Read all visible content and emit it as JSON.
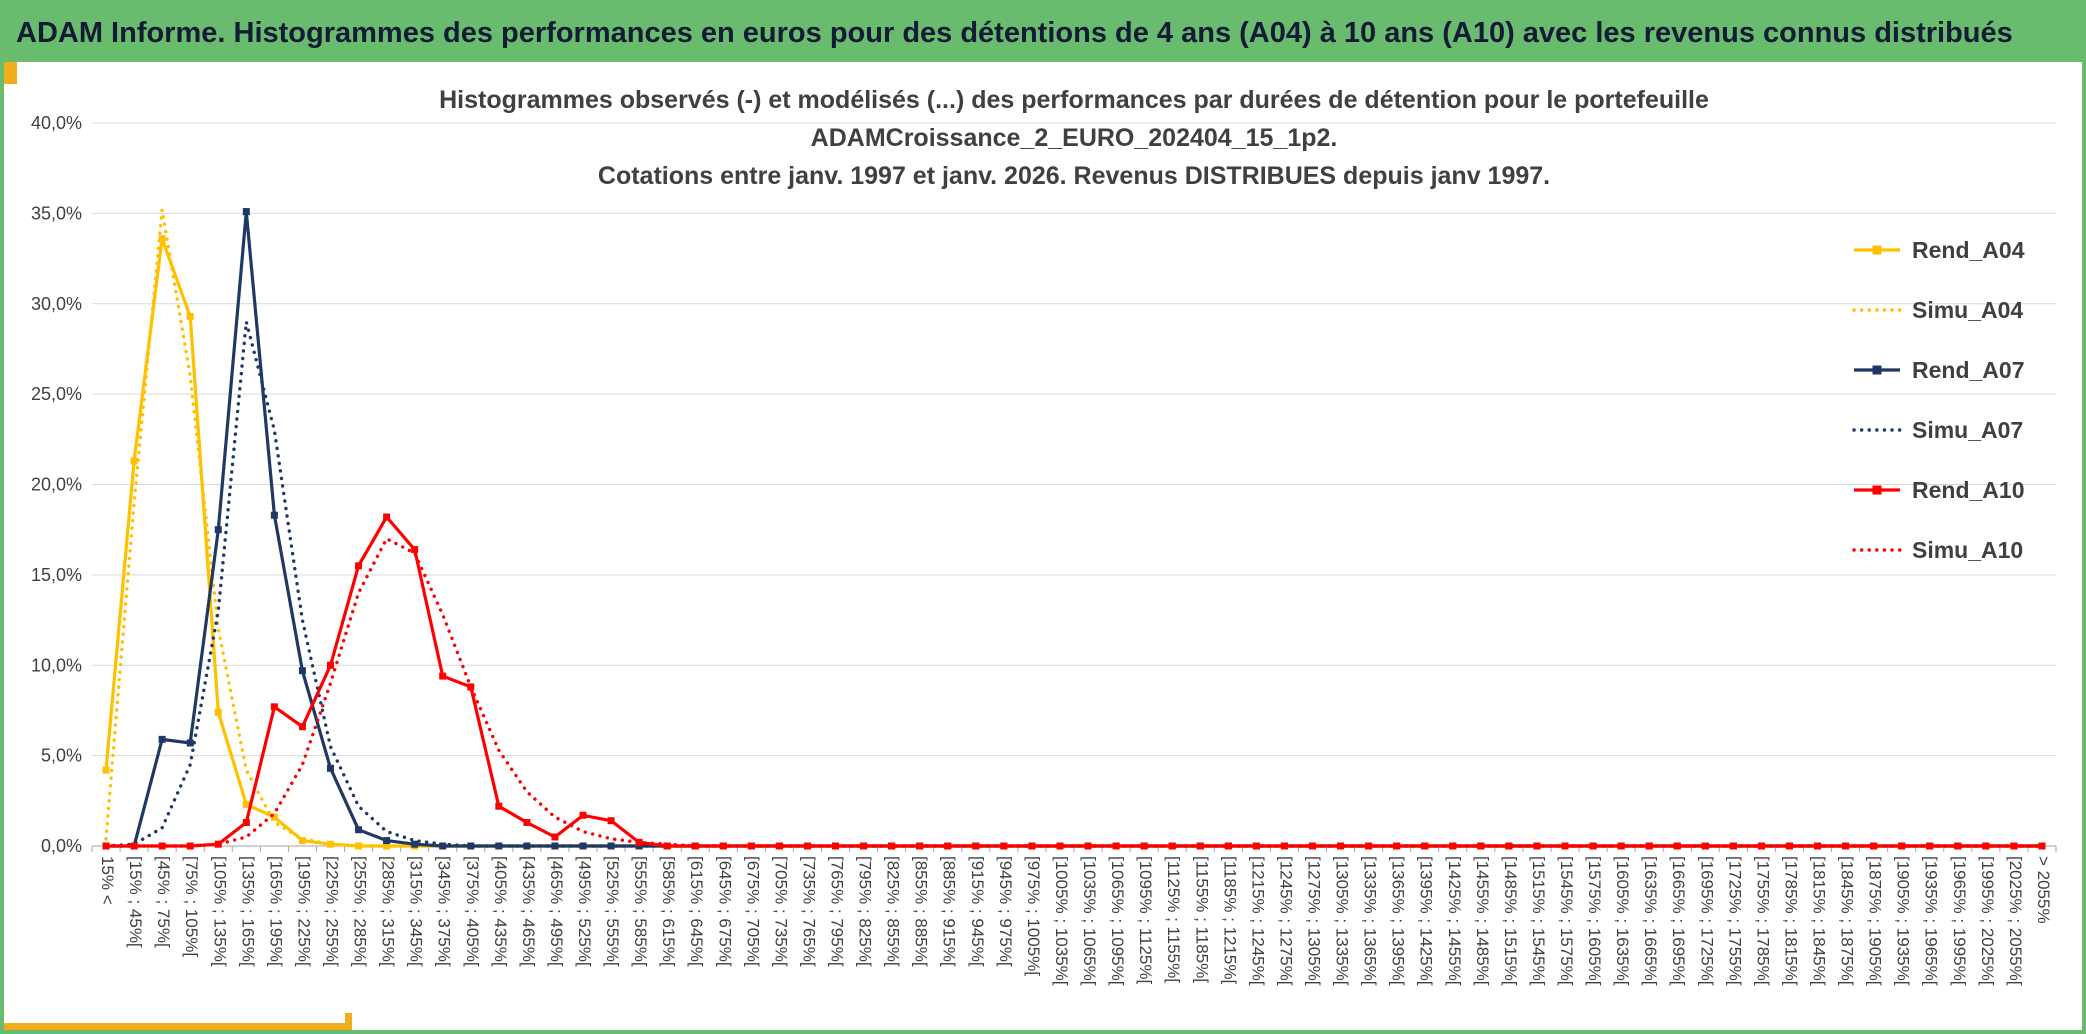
{
  "header": {
    "title": "ADAM Informe. Histogrammes des performances en euros pour des détentions de 4 ans (A04) à 10 ans (A10) avec les revenus connus distribués"
  },
  "colors": {
    "header_green": "#69BC6D",
    "header_text": "#131B36",
    "accent_gold": "#F0AE1F",
    "title_text": "#404040",
    "tick_text": "#404040",
    "grid_line": "#D9D9D9",
    "axis_line": "#A6A6A6",
    "series_gold": "#FFC000",
    "series_navy": "#1F3864",
    "series_red": "#FF0000"
  },
  "chart_data": {
    "type": "line",
    "title_lines": [
      "Histogrammes observés (-) et modélisés (...) des performances par durées de détention pour le portefeuille",
      "ADAMCroissance_2_EURO_202404_15_1p2.",
      "Cotations entre janv. 1997 et janv. 2026. Revenus DISTRIBUES depuis janv 1997."
    ],
    "xlabel": "",
    "ylabel": "",
    "ylim": [
      0,
      40
    ],
    "grid": "horizontal",
    "legend_position": "right-inside",
    "y_ticks": [
      "0,0%",
      "5,0%",
      "10,0%",
      "15,0%",
      "20,0%",
      "25,0%",
      "30,0%",
      "35,0%",
      "40,0%"
    ],
    "categories": [
      "15%  <",
      "[15% ; 45%[",
      "[45% ; 75%[",
      "[75% ; 105%[",
      "[105% ; 135%[",
      "[135% ; 165%[",
      "[165% ; 195%[",
      "[195% ; 225%[",
      "[225% ; 255%[",
      "[255% ; 285%[",
      "[285% ; 315%[",
      "[315% ; 345%[",
      "[345% ; 375%[",
      "[375% ; 405%[",
      "[405% ; 435%[",
      "[435% ; 465%[",
      "[465% ; 495%[",
      "[495% ; 525%[",
      "[525% ; 555%[",
      "[555% ; 585%[",
      "[585% ; 615%[",
      "[615% ; 645%[",
      "[645% ; 675%[",
      "[675% ; 705%[",
      "[705% ; 735%[",
      "[735% ; 765%[",
      "[765% ; 795%[",
      "[795% ; 825%[",
      "[825% ; 855%[",
      "[855% ; 885%[",
      "[885% ; 915%[",
      "[915% ; 945%[",
      "[945% ; 975%[",
      "[975% ; 1005%[",
      "[1005% ; 1035%[",
      "[1035% ; 1065%[",
      "[1065% ; 1095%[",
      "[1095% ; 1125%[",
      "[1125% ; 1155%[",
      "[1155% ; 1185%[",
      "[1185% ; 1215%[",
      "[1215% ; 1245%[",
      "[1245% ; 1275%[",
      "[1275% ; 1305%[",
      "[1305% ; 1335%[",
      "[1335% ; 1365%[",
      "[1365% ; 1395%[",
      "[1395% ; 1425%[",
      "[1425% ; 1455%[",
      "[1455% ; 1485%[",
      "[1485% ; 1515%[",
      "[1515% ; 1545%[",
      "[1545% ; 1575%[",
      "[1575% ; 1605%[",
      "[1605% ; 1635%[",
      "[1635% ; 1665%[",
      "[1665% ; 1695%[",
      "[1695% ; 1725%[",
      "[1725% ; 1755%[",
      "[1755% ; 1785%[",
      "[1785% ; 1815%[",
      "[1815% ; 1845%[",
      "[1845% ; 1875%[",
      "[1875% ; 1905%[",
      "[1905% ; 1935%[",
      "[1935% ; 1965%[",
      "[1965% ; 1995%[",
      "[1995% ; 2025%[",
      "[2025% ; 2055%[",
      "> 2055%"
    ],
    "series": [
      {
        "name": "Rend_A04",
        "color": "#FFC000",
        "style": "solid",
        "marker": "square",
        "values": [
          4.2,
          21.3,
          33.6,
          29.3,
          7.4,
          2.3,
          1.6,
          0.3,
          0.1,
          0
        ]
      },
      {
        "name": "Simu_A04",
        "color": "#FFC000",
        "style": "dotted",
        "marker": "none",
        "values": [
          0.4,
          19.0,
          35.2,
          26.0,
          12.0,
          4.2,
          1.3,
          0.4,
          0.1,
          0
        ]
      },
      {
        "name": "Rend_A07",
        "color": "#1F3864",
        "style": "solid",
        "marker": "square",
        "values": [
          0,
          0,
          5.9,
          5.7,
          17.5,
          35.1,
          18.3,
          9.7,
          4.3,
          0.9,
          0.3,
          0.1,
          0
        ]
      },
      {
        "name": "Simu_A07",
        "color": "#1F3864",
        "style": "dotted",
        "marker": "none",
        "values": [
          0,
          0.1,
          1.0,
          4.5,
          13.0,
          29.0,
          23.0,
          12.5,
          5.5,
          2.2,
          0.8,
          0.3,
          0.1,
          0
        ]
      },
      {
        "name": "Rend_A10",
        "color": "#FF0000",
        "style": "solid",
        "marker": "square",
        "values": [
          0,
          0,
          0,
          0,
          0.1,
          1.3,
          7.7,
          6.6,
          10.0,
          15.5,
          18.2,
          16.4,
          9.4,
          8.8,
          2.2,
          1.3,
          0.5,
          1.7,
          1.4,
          0.2,
          0
        ]
      },
      {
        "name": "Simu_A10",
        "color": "#FF0000",
        "style": "dotted",
        "marker": "none",
        "values": [
          0,
          0,
          0,
          0,
          0.1,
          0.5,
          1.8,
          4.5,
          9.0,
          14.0,
          17.0,
          16.2,
          12.8,
          8.8,
          5.3,
          3.0,
          1.6,
          0.8,
          0.4,
          0.2,
          0.1,
          0
        ]
      }
    ]
  }
}
